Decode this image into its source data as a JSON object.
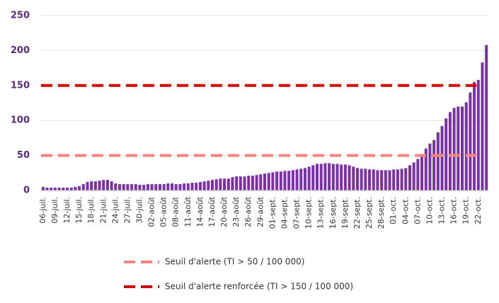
{
  "chart_data": {
    "type": "bar",
    "categories": [
      "06-juil.",
      null,
      null,
      "09-juil.",
      null,
      null,
      "12-juil.",
      null,
      null,
      "15-juil.",
      null,
      null,
      "18-juil.",
      null,
      null,
      "21-juil.",
      null,
      null,
      "24-juil.",
      null,
      null,
      "27-juil.",
      null,
      null,
      "30-juil.",
      null,
      null,
      "02-août",
      null,
      null,
      "05-août",
      null,
      null,
      "08-août",
      null,
      null,
      "11-août",
      null,
      null,
      "14-août",
      null,
      null,
      "17-août",
      null,
      null,
      "20-août",
      null,
      null,
      "23-août",
      null,
      null,
      "26-août",
      null,
      null,
      "29-août",
      null,
      null,
      "01-sept.",
      null,
      null,
      "04-sept.",
      null,
      null,
      "07-sept.",
      null,
      null,
      "10-sept.",
      null,
      null,
      "13-sept.",
      null,
      null,
      "16-sept.",
      null,
      null,
      "19-sept.",
      null,
      null,
      "22-sept.",
      null,
      null,
      "25-sept.",
      null,
      null,
      "28-sept.",
      null,
      null,
      "01-oct.",
      null,
      null,
      "04-oct.",
      null,
      null,
      "07-oct.",
      null,
      null,
      "10-oct.",
      null,
      null,
      "13-oct.",
      null,
      null,
      "16-oct.",
      null,
      null,
      "19-oct.",
      null,
      null,
      "22-oct.",
      null,
      null
    ],
    "values": [
      5,
      4,
      4,
      4,
      4,
      4,
      4,
      4,
      5,
      6,
      9,
      12,
      13,
      13,
      14,
      15,
      15,
      13,
      10,
      9,
      9,
      9,
      9,
      9,
      8,
      8,
      9,
      9,
      9,
      9,
      9,
      10,
      10,
      9,
      9,
      10,
      10,
      11,
      11,
      12,
      13,
      14,
      15,
      16,
      17,
      17,
      17,
      19,
      20,
      20,
      20,
      21,
      21,
      22,
      23,
      24,
      25,
      26,
      27,
      27,
      28,
      28,
      29,
      30,
      31,
      32,
      34,
      36,
      38,
      38,
      39,
      39,
      38,
      38,
      37,
      37,
      36,
      34,
      32,
      31,
      31,
      30,
      30,
      29,
      29,
      29,
      29,
      30,
      30,
      31,
      32,
      36,
      40,
      45,
      52,
      60,
      67,
      72,
      83,
      92,
      103,
      112,
      118,
      120,
      120,
      126,
      140,
      155,
      158,
      183,
      208
    ],
    "color": "#7b2fa8",
    "thresholds": [
      {
        "name": "Seuil d'alerte (TI > 50 / 100 000)",
        "value": 50,
        "color": "#f4847f"
      },
      {
        "name": "Seuil d'alerte renforcée (TI > 150 / 100 000)",
        "value": 150,
        "color": "#d40000"
      }
    ],
    "ylim": [
      0,
      250
    ],
    "yticks": [
      0,
      50,
      100,
      150,
      200,
      250
    ],
    "grid": true
  }
}
